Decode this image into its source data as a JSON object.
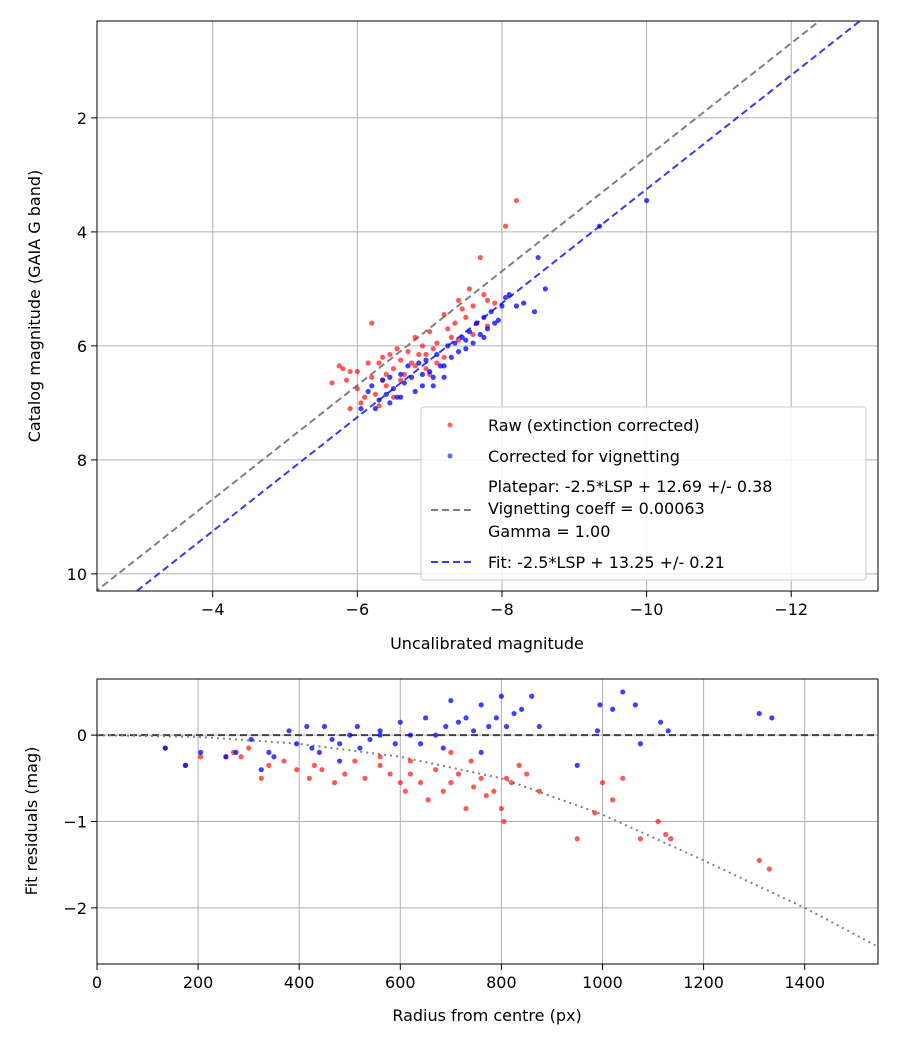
{
  "chart_data": [
    {
      "type": "scatter",
      "xlabel": "Uncalibrated magnitude",
      "ylabel": "Catalog magnitude (GAIA G band)",
      "xlim": [
        -2.4,
        -13.2
      ],
      "ylim": [
        10.3,
        0.3
      ],
      "x_inverted": true,
      "y_inverted": true,
      "xticks": [
        -4,
        -6,
        -8,
        -10,
        -12
      ],
      "xtick_labels": [
        "−4",
        "−6",
        "−8",
        "−10",
        "−12"
      ],
      "yticks": [
        2,
        4,
        6,
        8,
        10
      ],
      "ytick_labels": [
        "2",
        "4",
        "6",
        "8",
        "10"
      ],
      "grid": true,
      "legend_location": "lower-right",
      "series": [
        {
          "name": "Raw (extinction corrected)",
          "color": "#ff0000",
          "points": [
            [
              -5.65,
              6.65
            ],
            [
              -5.75,
              6.35
            ],
            [
              -5.8,
              6.4
            ],
            [
              -5.85,
              6.6
            ],
            [
              -5.9,
              6.45
            ],
            [
              -5.9,
              7.1
            ],
            [
              -6.0,
              6.75
            ],
            [
              -6.05,
              7.0
            ],
            [
              -6.1,
              6.9
            ],
            [
              -6.15,
              6.3
            ],
            [
              -6.2,
              5.6
            ],
            [
              -6.2,
              6.55
            ],
            [
              -6.25,
              6.85
            ],
            [
              -6.3,
              6.3
            ],
            [
              -6.35,
              6.2
            ],
            [
              -6.4,
              6.5
            ],
            [
              -6.4,
              6.7
            ],
            [
              -6.45,
              6.15
            ],
            [
              -6.5,
              6.4
            ],
            [
              -6.55,
              6.05
            ],
            [
              -6.6,
              6.25
            ],
            [
              -6.6,
              6.6
            ],
            [
              -6.7,
              6.1
            ],
            [
              -6.75,
              6.3
            ],
            [
              -6.8,
              5.85
            ],
            [
              -6.85,
              6.15
            ],
            [
              -6.9,
              6.0
            ],
            [
              -6.95,
              6.4
            ],
            [
              -7.0,
              5.75
            ],
            [
              -7.05,
              6.05
            ],
            [
              -7.1,
              5.95
            ],
            [
              -7.2,
              5.45
            ],
            [
              -7.2,
              6.2
            ],
            [
              -7.3,
              5.85
            ],
            [
              -7.35,
              5.6
            ],
            [
              -7.4,
              5.9
            ],
            [
              -7.5,
              5.5
            ],
            [
              -7.55,
              5.0
            ],
            [
              -7.6,
              5.3
            ],
            [
              -7.65,
              5.6
            ],
            [
              -7.7,
              4.45
            ],
            [
              -7.75,
              5.1
            ],
            [
              -7.8,
              5.2
            ],
            [
              -7.9,
              5.25
            ],
            [
              -8.05,
              3.9
            ],
            [
              -8.2,
              3.45
            ],
            [
              -6.5,
              6.9
            ],
            [
              -6.65,
              6.5
            ],
            [
              -6.95,
              6.15
            ],
            [
              -7.25,
              5.7
            ],
            [
              -7.45,
              5.35
            ],
            [
              -7.8,
              5.65
            ],
            [
              -6.35,
              6.6
            ],
            [
              -6.0,
              6.45
            ],
            [
              -7.1,
              6.3
            ],
            [
              -6.8,
              6.35
            ],
            [
              -7.6,
              5.8
            ],
            [
              -6.3,
              7.05
            ],
            [
              -7.0,
              6.5
            ],
            [
              -7.4,
              5.2
            ]
          ]
        },
        {
          "name": "Corrected for vignetting",
          "color": "#0000ff",
          "points": [
            [
              -6.05,
              7.1
            ],
            [
              -6.15,
              6.8
            ],
            [
              -6.2,
              6.7
            ],
            [
              -6.25,
              7.1
            ],
            [
              -6.3,
              6.95
            ],
            [
              -6.35,
              6.6
            ],
            [
              -6.4,
              6.85
            ],
            [
              -6.45,
              6.55
            ],
            [
              -6.5,
              6.75
            ],
            [
              -6.55,
              6.9
            ],
            [
              -6.6,
              6.5
            ],
            [
              -6.65,
              6.65
            ],
            [
              -6.7,
              6.35
            ],
            [
              -6.75,
              6.55
            ],
            [
              -6.8,
              6.8
            ],
            [
              -6.85,
              6.3
            ],
            [
              -6.9,
              6.5
            ],
            [
              -6.95,
              6.25
            ],
            [
              -7.0,
              6.45
            ],
            [
              -7.05,
              6.7
            ],
            [
              -7.1,
              6.15
            ],
            [
              -7.15,
              6.35
            ],
            [
              -7.2,
              6.55
            ],
            [
              -7.25,
              6.0
            ],
            [
              -7.3,
              6.2
            ],
            [
              -7.35,
              5.95
            ],
            [
              -7.4,
              6.1
            ],
            [
              -7.45,
              5.85
            ],
            [
              -7.5,
              6.05
            ],
            [
              -7.55,
              5.75
            ],
            [
              -7.6,
              5.95
            ],
            [
              -7.65,
              5.6
            ],
            [
              -7.7,
              5.8
            ],
            [
              -7.75,
              5.5
            ],
            [
              -7.8,
              5.7
            ],
            [
              -7.85,
              5.4
            ],
            [
              -7.9,
              5.6
            ],
            [
              -8.0,
              5.3
            ],
            [
              -8.05,
              5.15
            ],
            [
              -8.1,
              5.1
            ],
            [
              -8.2,
              5.3
            ],
            [
              -8.3,
              5.25
            ],
            [
              -8.45,
              5.4
            ],
            [
              -8.5,
              4.45
            ],
            [
              -8.6,
              5.0
            ],
            [
              -9.35,
              3.9
            ],
            [
              -10.0,
              3.45
            ],
            [
              -6.6,
              6.9
            ],
            [
              -6.9,
              6.7
            ],
            [
              -7.2,
              6.35
            ],
            [
              -7.5,
              5.9
            ],
            [
              -7.75,
              5.85
            ],
            [
              -6.45,
              7.0
            ],
            [
              -7.05,
              6.55
            ],
            [
              -7.95,
              5.55
            ]
          ]
        }
      ],
      "lines": [
        {
          "name": "Platepar: -2.5*LSP + 12.69 +/- 0.38\nVignetting coeff = 0.00063\nGamma = 1.00",
          "label_lines": [
            "Platepar: -2.5*LSP + 12.69 +/- 0.38",
            "Vignetting coeff = 0.00063",
            "Gamma = 1.00"
          ],
          "color": "#808080",
          "style": "dashed",
          "slope": 1,
          "intercept": 12.69
        },
        {
          "name": "Fit: -2.5*LSP + 13.25 +/- 0.21",
          "label_lines": [
            "Fit: -2.5*LSP + 13.25 +/- 0.21"
          ],
          "color": "#3a3aec",
          "style": "dashed",
          "slope": 1,
          "intercept": 13.25
        }
      ]
    },
    {
      "type": "scatter",
      "xlabel": "Radius from centre (px)",
      "ylabel": "Fit residuals (mag)",
      "xlim": [
        0,
        1545
      ],
      "ylim": [
        -2.65,
        0.65
      ],
      "xticks": [
        0,
        200,
        400,
        600,
        800,
        1000,
        1200,
        1400
      ],
      "xtick_labels": [
        "0",
        "200",
        "400",
        "600",
        "800",
        "1000",
        "1200",
        "1400"
      ],
      "yticks": [
        0,
        -1,
        -2
      ],
      "ytick_labels": [
        "0",
        "−1",
        "−2"
      ],
      "grid": true,
      "series": [
        {
          "name": "Raw (extinction corrected)",
          "color": "#ff0000",
          "points": [
            [
              135,
              -0.15
            ],
            [
              175,
              -0.35
            ],
            [
              205,
              -0.25
            ],
            [
              255,
              -0.25
            ],
            [
              270,
              -0.2
            ],
            [
              285,
              -0.25
            ],
            [
              300,
              -0.15
            ],
            [
              325,
              -0.5
            ],
            [
              340,
              -0.35
            ],
            [
              370,
              -0.3
            ],
            [
              395,
              -0.4
            ],
            [
              420,
              -0.5
            ],
            [
              430,
              -0.35
            ],
            [
              445,
              -0.4
            ],
            [
              470,
              -0.55
            ],
            [
              490,
              -0.45
            ],
            [
              510,
              -0.3
            ],
            [
              530,
              -0.5
            ],
            [
              560,
              -0.35
            ],
            [
              580,
              -0.45
            ],
            [
              600,
              -0.55
            ],
            [
              610,
              -0.65
            ],
            [
              620,
              -0.45
            ],
            [
              640,
              -0.55
            ],
            [
              655,
              -0.75
            ],
            [
              670,
              -0.4
            ],
            [
              685,
              -0.65
            ],
            [
              700,
              -0.55
            ],
            [
              715,
              -0.45
            ],
            [
              730,
              -0.85
            ],
            [
              745,
              -0.6
            ],
            [
              760,
              -0.5
            ],
            [
              770,
              -0.7
            ],
            [
              785,
              -0.65
            ],
            [
              800,
              -0.85
            ],
            [
              810,
              -0.5
            ],
            [
              820,
              -0.55
            ],
            [
              835,
              -0.35
            ],
            [
              850,
              -0.45
            ],
            [
              875,
              -0.65
            ],
            [
              950,
              -1.2
            ],
            [
              985,
              -0.9
            ],
            [
              1000,
              -0.55
            ],
            [
              1020,
              -0.75
            ],
            [
              1040,
              -0.5
            ],
            [
              1075,
              -1.2
            ],
            [
              1110,
              -1.0
            ],
            [
              1125,
              -1.15
            ],
            [
              1135,
              -1.2
            ],
            [
              1310,
              -1.45
            ],
            [
              1330,
              -1.55
            ],
            [
              805,
              -1.0
            ],
            [
              700,
              -0.2
            ],
            [
              740,
              -0.3
            ],
            [
              620,
              -0.3
            ],
            [
              560,
              -0.25
            ]
          ]
        },
        {
          "name": "Corrected for vignetting",
          "color": "#0000ff",
          "points": [
            [
              135,
              -0.15
            ],
            [
              175,
              -0.35
            ],
            [
              205,
              -0.2
            ],
            [
              255,
              -0.25
            ],
            [
              275,
              -0.2
            ],
            [
              305,
              -0.05
            ],
            [
              325,
              -0.4
            ],
            [
              340,
              -0.2
            ],
            [
              350,
              -0.25
            ],
            [
              380,
              0.05
            ],
            [
              395,
              -0.1
            ],
            [
              415,
              0.1
            ],
            [
              425,
              -0.15
            ],
            [
              440,
              -0.2
            ],
            [
              450,
              0.1
            ],
            [
              465,
              -0.05
            ],
            [
              480,
              -0.3
            ],
            [
              500,
              0.0
            ],
            [
              515,
              0.1
            ],
            [
              520,
              -0.15
            ],
            [
              540,
              -0.05
            ],
            [
              560,
              0.0
            ],
            [
              590,
              -0.1
            ],
            [
              600,
              0.15
            ],
            [
              620,
              0.0
            ],
            [
              640,
              -0.1
            ],
            [
              650,
              0.2
            ],
            [
              670,
              0.0
            ],
            [
              690,
              0.1
            ],
            [
              700,
              0.4
            ],
            [
              715,
              0.15
            ],
            [
              730,
              0.2
            ],
            [
              745,
              0.05
            ],
            [
              760,
              0.35
            ],
            [
              775,
              0.1
            ],
            [
              790,
              0.2
            ],
            [
              800,
              0.45
            ],
            [
              810,
              0.1
            ],
            [
              825,
              0.25
            ],
            [
              840,
              0.3
            ],
            [
              860,
              0.45
            ],
            [
              875,
              0.1
            ],
            [
              950,
              -0.35
            ],
            [
              990,
              0.05
            ],
            [
              995,
              0.35
            ],
            [
              1020,
              0.3
            ],
            [
              1040,
              0.5
            ],
            [
              1065,
              0.35
            ],
            [
              1075,
              -0.1
            ],
            [
              1115,
              0.15
            ],
            [
              1130,
              0.05
            ],
            [
              1310,
              0.25
            ],
            [
              1335,
              0.2
            ],
            [
              760,
              -0.2
            ],
            [
              685,
              -0.15
            ],
            [
              560,
              0.05
            ],
            [
              480,
              -0.1
            ]
          ]
        }
      ],
      "lines": [
        {
          "color": "#404040",
          "style": "dashed",
          "points": [
            [
              0,
              0
            ],
            [
              1545,
              0
            ]
          ]
        },
        {
          "color": "#808080",
          "style": "dotted",
          "points": [
            [
              0,
              0
            ],
            [
              200,
              -0.02
            ],
            [
              400,
              -0.1
            ],
            [
              600,
              -0.25
            ],
            [
              800,
              -0.5
            ],
            [
              1000,
              -0.92
            ],
            [
              1200,
              -1.45
            ],
            [
              1400,
              -2.0
            ],
            [
              1545,
              -2.45
            ]
          ]
        }
      ]
    }
  ]
}
